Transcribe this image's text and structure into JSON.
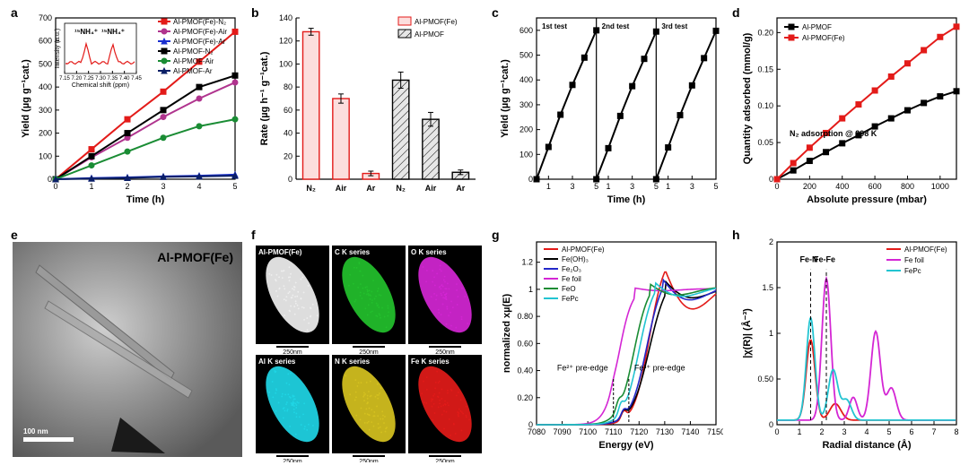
{
  "figure_labels": {
    "a": "a",
    "b": "b",
    "c": "c",
    "d": "d",
    "e": "e",
    "f": "f",
    "g": "g",
    "h": "h"
  },
  "panel_a": {
    "type": "line",
    "title": "",
    "xlabel": "Time (h)",
    "ylabel": "Yield (µg g⁻¹cat.)",
    "xlim": [
      0,
      5
    ],
    "xtick_step": 1,
    "ylim": [
      0,
      700
    ],
    "ytick_step": 100,
    "label_fontsize": 11,
    "tick_fontsize": 9,
    "series": [
      {
        "name": "Al-PMOF(Fe)-N₂",
        "color": "#e31b19",
        "marker": "square",
        "x": [
          0,
          1,
          2,
          3,
          4,
          5
        ],
        "y": [
          0,
          130,
          260,
          380,
          510,
          640
        ]
      },
      {
        "name": "Al-PMOF(Fe)-Air",
        "color": "#b0348e",
        "marker": "circle",
        "x": [
          0,
          1,
          2,
          3,
          4,
          5
        ],
        "y": [
          0,
          95,
          180,
          270,
          350,
          420
        ]
      },
      {
        "name": "Al-PMOF(Fe)-Ar",
        "color": "#1a2fcf",
        "marker": "triangle",
        "x": [
          0,
          1,
          2,
          3,
          4,
          5
        ],
        "y": [
          0,
          5,
          8,
          12,
          15,
          20
        ]
      },
      {
        "name": "Al-PMOF-N₂",
        "color": "#000000",
        "marker": "square",
        "x": [
          0,
          1,
          2,
          3,
          4,
          5
        ],
        "y": [
          0,
          100,
          200,
          300,
          400,
          450
        ]
      },
      {
        "name": "Al-PMOF-Air",
        "color": "#1a8c34",
        "marker": "circle",
        "x": [
          0,
          1,
          2,
          3,
          4,
          5
        ],
        "y": [
          0,
          60,
          120,
          180,
          230,
          260
        ]
      },
      {
        "name": "Al-PMOF-Ar",
        "color": "#0b1f66",
        "marker": "triangle",
        "x": [
          0,
          1,
          2,
          3,
          4,
          5
        ],
        "y": [
          0,
          3,
          6,
          10,
          12,
          15
        ]
      }
    ],
    "inset": {
      "xlabel": "Chemical shift (ppm)",
      "ylabel": "Intensity (a.u.)",
      "xlim": [
        7.15,
        7.45
      ],
      "xtick_step": 0.05,
      "color": "#e31b19",
      "peaks": [
        "¹⁵NH₄⁺",
        "¹⁵NH₄⁺"
      ]
    }
  },
  "panel_b": {
    "type": "bar",
    "xlabel": "",
    "ylabel": "Rate (µg h⁻¹ g⁻¹cat.)",
    "ylim": [
      0,
      140
    ],
    "ytick_step": 20,
    "categories": [
      "N₂",
      "Air",
      "Ar",
      "N₂",
      "Air",
      "Ar"
    ],
    "groups": [
      {
        "name": "Al-PMOF(Fe)",
        "fill": "#fcdedd",
        "edge": "#e31b19",
        "hatch": "none",
        "values": [
          128,
          70,
          5
        ],
        "err": [
          3,
          4,
          2
        ]
      },
      {
        "name": "Al-PMOF",
        "fill": "#e6e6e6",
        "edge": "#000000",
        "hatch": "diag",
        "values": [
          86,
          52,
          6
        ],
        "err": [
          7,
          6,
          2
        ]
      }
    ],
    "bar_width": 0.55
  },
  "panel_c": {
    "type": "line",
    "xlabel": "Time (h)",
    "ylabel": "Yield (µg g⁻¹cat.)",
    "labels": [
      "1st test",
      "2nd test",
      "3rd test"
    ],
    "per_test_xlim": [
      0,
      5
    ],
    "xtick_vals": [
      1,
      3,
      5
    ],
    "ylim": [
      0,
      650
    ],
    "ytick_step": 100,
    "color": "#000000",
    "tests": [
      {
        "x": [
          0,
          1,
          2,
          3,
          4,
          5
        ],
        "y": [
          0,
          130,
          260,
          380,
          490,
          600
        ]
      },
      {
        "x": [
          0,
          1,
          2,
          3,
          4,
          5
        ],
        "y": [
          0,
          125,
          255,
          375,
          485,
          595
        ]
      },
      {
        "x": [
          0,
          1,
          2,
          3,
          4,
          5
        ],
        "y": [
          0,
          128,
          258,
          378,
          488,
          598
        ]
      }
    ]
  },
  "panel_d": {
    "type": "line",
    "xlabel": "Absolute pressure (mbar)",
    "ylabel": "Quantity adsorbed (mmol/g)",
    "xlim": [
      0,
      1100
    ],
    "xtick_step": 200,
    "ylim": [
      0,
      0.22
    ],
    "ytick_step": 0.05,
    "annotation": "N₂ adsorption @ 298 K",
    "series": [
      {
        "name": "Al-PMOF",
        "color": "#000000",
        "marker": "square",
        "x": [
          0,
          100,
          200,
          300,
          400,
          500,
          600,
          700,
          800,
          900,
          1000,
          1100
        ],
        "y": [
          0,
          0.012,
          0.025,
          0.037,
          0.049,
          0.06,
          0.072,
          0.083,
          0.094,
          0.104,
          0.113,
          0.12
        ]
      },
      {
        "name": "Al-PMOF(Fe)",
        "color": "#e31b19",
        "marker": "square",
        "x": [
          0,
          100,
          200,
          300,
          400,
          500,
          600,
          700,
          800,
          900,
          1000,
          1100
        ],
        "y": [
          0,
          0.022,
          0.043,
          0.063,
          0.083,
          0.102,
          0.121,
          0.14,
          0.158,
          0.176,
          0.194,
          0.208
        ]
      }
    ]
  },
  "panel_e": {
    "type": "tem_image",
    "label": "Al-PMOF(Fe)",
    "scalebar": "100 nm",
    "bg": "#808080"
  },
  "panel_f": {
    "type": "eds_maps",
    "scalebar": "250nm",
    "maps": [
      {
        "name": "Al-PMOF(Fe)",
        "color": "#f0f0f0"
      },
      {
        "name": "C K series",
        "color": "#23c12d"
      },
      {
        "name": "O K series",
        "color": "#d426d4"
      },
      {
        "name": "Al K series",
        "color": "#20d6e6"
      },
      {
        "name": "N K series",
        "color": "#d6c220"
      },
      {
        "name": "Fe K series",
        "color": "#e31b19"
      }
    ]
  },
  "panel_g": {
    "type": "xanes",
    "xlabel": "Energy (eV)",
    "ylabel": "normalized xµ(E)",
    "xlim": [
      7080,
      7150
    ],
    "xtick_step": 10,
    "ylim": [
      0,
      1.35
    ],
    "ytick_step": 0.2,
    "annotations": [
      "Fe²⁺ pre-edge",
      "Fe³⁺ pre-edge"
    ],
    "ann_x": [
      7110,
      7116
    ],
    "series": [
      {
        "name": "Al-PMOF(Fe)",
        "color": "#e31b19"
      },
      {
        "name": "Fe(OH)₃",
        "color": "#000000"
      },
      {
        "name": "Fe₂O₃",
        "color": "#2328c9"
      },
      {
        "name": "Fe foil",
        "color": "#d426d4"
      },
      {
        "name": "FeO",
        "color": "#1a8c34"
      },
      {
        "name": "FePc",
        "color": "#22c4d1"
      }
    ]
  },
  "panel_h": {
    "type": "exafs",
    "xlabel": "Radial distance (Å)",
    "ylabel": "|χ(R)| (Å⁻³)",
    "xlim": [
      0,
      8
    ],
    "xtick_step": 1,
    "ylim": [
      0,
      2.0
    ],
    "ytick_step": 0.5,
    "annotations": [
      "Fe-N",
      "Fe-Fe"
    ],
    "ann_x": [
      1.5,
      2.2
    ],
    "series": [
      {
        "name": "Al-PMOF(Fe)",
        "color": "#e31b19"
      },
      {
        "name": "Fe foil",
        "color": "#d426d4"
      },
      {
        "name": "FePc",
        "color": "#22c4d1"
      }
    ]
  }
}
